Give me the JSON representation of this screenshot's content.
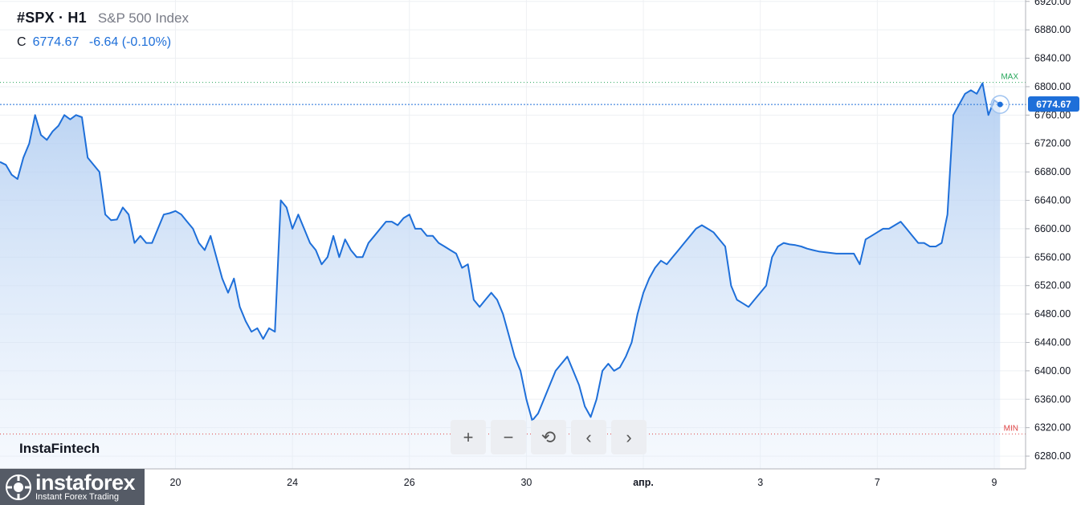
{
  "header": {
    "symbol": "#SPX · H1",
    "description": "S&P 500 Index",
    "close_label": "C",
    "close_value": "6774.67",
    "change": "-6.64 (-0.10%)"
  },
  "watermark": "InstaFintech",
  "brand": {
    "name": "instaforex",
    "tagline": "Instant Forex Trading"
  },
  "last_price_label": "6774.67",
  "markers": {
    "max": "MAX",
    "min": "MIN",
    "max_value": 6806,
    "min_value": 6311
  },
  "colors": {
    "line": "#1e6fd9",
    "fill": "#b9d3f3",
    "grid": "#eef0f3",
    "max": "#26a65b",
    "min": "#e04444"
  },
  "toolbar": {
    "icons": [
      "plus-icon",
      "minus-icon",
      "reset-icon",
      "chevron-left-icon",
      "chevron-right-icon"
    ],
    "glyphs": [
      "+",
      "−",
      "⟲",
      "‹",
      "›"
    ]
  },
  "chart_data": {
    "type": "area",
    "title": "S&P 500 Index",
    "xlabel": "",
    "ylabel": "",
    "ylim": [
      6262,
      6922
    ],
    "grid": true,
    "y_ticks": [
      "6920.00",
      "6880.00",
      "6840.00",
      "6800.00",
      "6760.00",
      "6720.00",
      "6680.00",
      "6640.00",
      "6600.00",
      "6560.00",
      "6520.00",
      "6480.00",
      "6440.00",
      "6400.00",
      "6360.00",
      "6320.00",
      "6280.00"
    ],
    "x_ticks": [
      {
        "label": "20",
        "index": 30
      },
      {
        "label": "24",
        "index": 50
      },
      {
        "label": "26",
        "index": 70
      },
      {
        "label": "30",
        "index": 90
      },
      {
        "label": "апр.",
        "index": 110
      },
      {
        "label": "3",
        "index": 130
      },
      {
        "label": "7",
        "index": 150
      },
      {
        "label": "9",
        "index": 170
      }
    ],
    "x_range": [
      0,
      175
    ],
    "series": [
      {
        "name": "#SPX",
        "values": [
          6694,
          6690,
          6676,
          6670,
          6700,
          6720,
          6760,
          6732,
          6725,
          6737,
          6745,
          6760,
          6754,
          6760,
          6757,
          6700,
          6690,
          6680,
          6620,
          6612,
          6613,
          6630,
          6620,
          6580,
          6590,
          6580,
          6580,
          6600,
          6620,
          6622,
          6625,
          6620,
          6610,
          6600,
          6580,
          6570,
          6590,
          6560,
          6530,
          6510,
          6530,
          6490,
          6470,
          6455,
          6460,
          6445,
          6460,
          6455,
          6640,
          6630,
          6600,
          6620,
          6600,
          6580,
          6570,
          6550,
          6560,
          6590,
          6560,
          6585,
          6570,
          6560,
          6560,
          6580,
          6590,
          6600,
          6610,
          6610,
          6605,
          6615,
          6620,
          6600,
          6600,
          6590,
          6590,
          6580,
          6575,
          6570,
          6565,
          6545,
          6550,
          6500,
          6490,
          6500,
          6510,
          6500,
          6480,
          6450,
          6420,
          6400,
          6360,
          6330,
          6340,
          6360,
          6380,
          6400,
          6410,
          6420,
          6400,
          6380,
          6350,
          6335,
          6360,
          6400,
          6410,
          6400,
          6405,
          6420,
          6440,
          6480,
          6510,
          6530,
          6545,
          6555,
          6550,
          6560,
          6570,
          6580,
          6590,
          6600,
          6605,
          6600,
          6595,
          6585,
          6575,
          6520,
          6500,
          6495,
          6490,
          6500,
          6510,
          6520,
          6560,
          6575,
          6580,
          6578,
          6577,
          6575,
          6572,
          6570,
          6568,
          6567,
          6566,
          6565,
          6565,
          6565,
          6565,
          6550,
          6585,
          6590,
          6595,
          6600,
          6600,
          6605,
          6610,
          6600,
          6590,
          6580,
          6580,
          6575,
          6575,
          6580,
          6620,
          6760,
          6775,
          6790,
          6795,
          6790,
          6805,
          6760,
          6781,
          6775
        ]
      }
    ]
  }
}
